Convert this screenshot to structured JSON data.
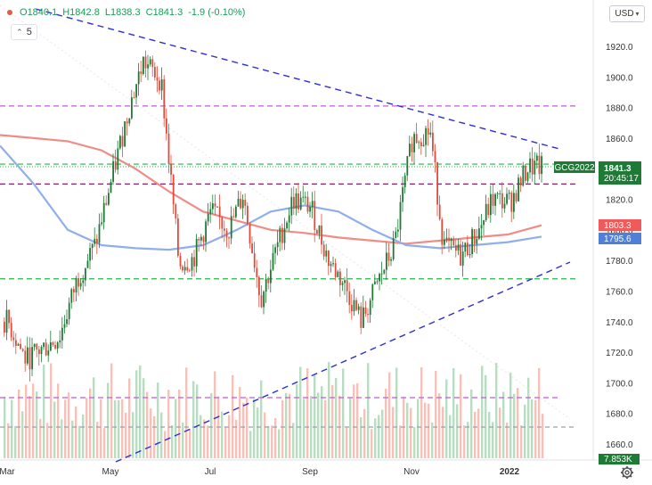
{
  "ohlc": {
    "open_label": "O",
    "open": "1840.1",
    "high_label": "H",
    "high": "1842.8",
    "low_label": "L",
    "low": "1838.3",
    "close_label": "C",
    "close": "1841.3",
    "change": "-1.9 (-0.10%)"
  },
  "period_value": "5",
  "currency": "USD",
  "colors": {
    "up": "#1e7b35",
    "down": "#e14b3b",
    "vol_up": "#b9dcc2",
    "vol_down": "#f5c1bb",
    "ma_long": "#f08c86",
    "ma_short": "#8faeea",
    "trend": "#2b2fd6",
    "level_green": "#22b64a",
    "level_purple": "#c25bd6",
    "level_maroon": "#8b1e6b"
  },
  "chart_data": {
    "type": "candlestick",
    "symbol": "GCG2022",
    "y_ticks": [
      1920.0,
      1900.0,
      1880.0,
      1860.0,
      1840.0,
      1820.0,
      1800.0,
      1780.0,
      1760.0,
      1740.0,
      1720.0,
      1700.0,
      1680.0,
      1660.0
    ],
    "x_ticks": [
      "Mar",
      "May",
      "Jul",
      "Sep",
      "Nov",
      "2022"
    ],
    "ylim": [
      1650,
      1935
    ],
    "price_labels": {
      "last": "1841.3",
      "countdown": "20:45:17",
      "ma_long_value": "1803.3",
      "ma_short_value": "1795.6",
      "volume": "7.853K"
    },
    "horizontal_levels": [
      {
        "price": 1881,
        "style": "purple"
      },
      {
        "price": 1843,
        "style": "green"
      },
      {
        "price": 1830,
        "style": "maroon"
      },
      {
        "price": 1768,
        "style": "green"
      },
      {
        "price": 1691,
        "style": "purple-volume"
      },
      {
        "price": 1672,
        "style": "gray-volume"
      }
    ],
    "trendlines": [
      {
        "from": [
          "Mar",
          1935
        ],
        "to": [
          "2022+",
          1853
        ]
      },
      {
        "from": [
          "May",
          1640
        ],
        "to": [
          "2022+",
          1778
        ]
      }
    ],
    "close_path": [
      [
        "Mar",
        1740
      ],
      [
        "Mar+",
        1715
      ],
      [
        "Apr",
        1730
      ],
      [
        "Apr+",
        1768
      ],
      [
        "Apr++",
        1790
      ],
      [
        "May",
        1832
      ],
      [
        "May+",
        1880
      ],
      [
        "Jun-",
        1910
      ],
      [
        "Jun",
        1898
      ],
      [
        "Jun+",
        1778
      ],
      [
        "Jul-",
        1781
      ],
      [
        "Jul",
        1812
      ],
      [
        "Jul+",
        1800
      ],
      [
        "Aug-",
        1823
      ],
      [
        "Aug",
        1755
      ],
      [
        "Aug+",
        1792
      ],
      [
        "Sep-",
        1820
      ],
      [
        "Sep",
        1815
      ],
      [
        "Sep+",
        1780
      ],
      [
        "Oct-",
        1765
      ],
      [
        "Oct",
        1740
      ],
      [
        "Oct+",
        1768
      ],
      [
        "Nov-",
        1790
      ],
      [
        "Nov",
        1860
      ],
      [
        "Nov+",
        1865
      ],
      [
        "Dec-",
        1790
      ],
      [
        "Dec",
        1783
      ],
      [
        "Dec+",
        1800
      ],
      [
        "2022-",
        1820
      ],
      [
        "2022",
        1818
      ],
      [
        "2022+",
        1841
      ]
    ],
    "ma_long_path": [
      1862,
      1860,
      1858,
      1852,
      1840,
      1825,
      1812,
      1806,
      1800,
      1798,
      1795,
      1793,
      1791,
      1793,
      1795,
      1797,
      1803
    ],
    "ma_short_path": [
      1855,
      1830,
      1800,
      1790,
      1788,
      1787,
      1790,
      1800,
      1812,
      1816,
      1812,
      1800,
      1790,
      1788,
      1790,
      1792,
      1795.6
    ],
    "grid": false,
    "legend": "top-left"
  }
}
